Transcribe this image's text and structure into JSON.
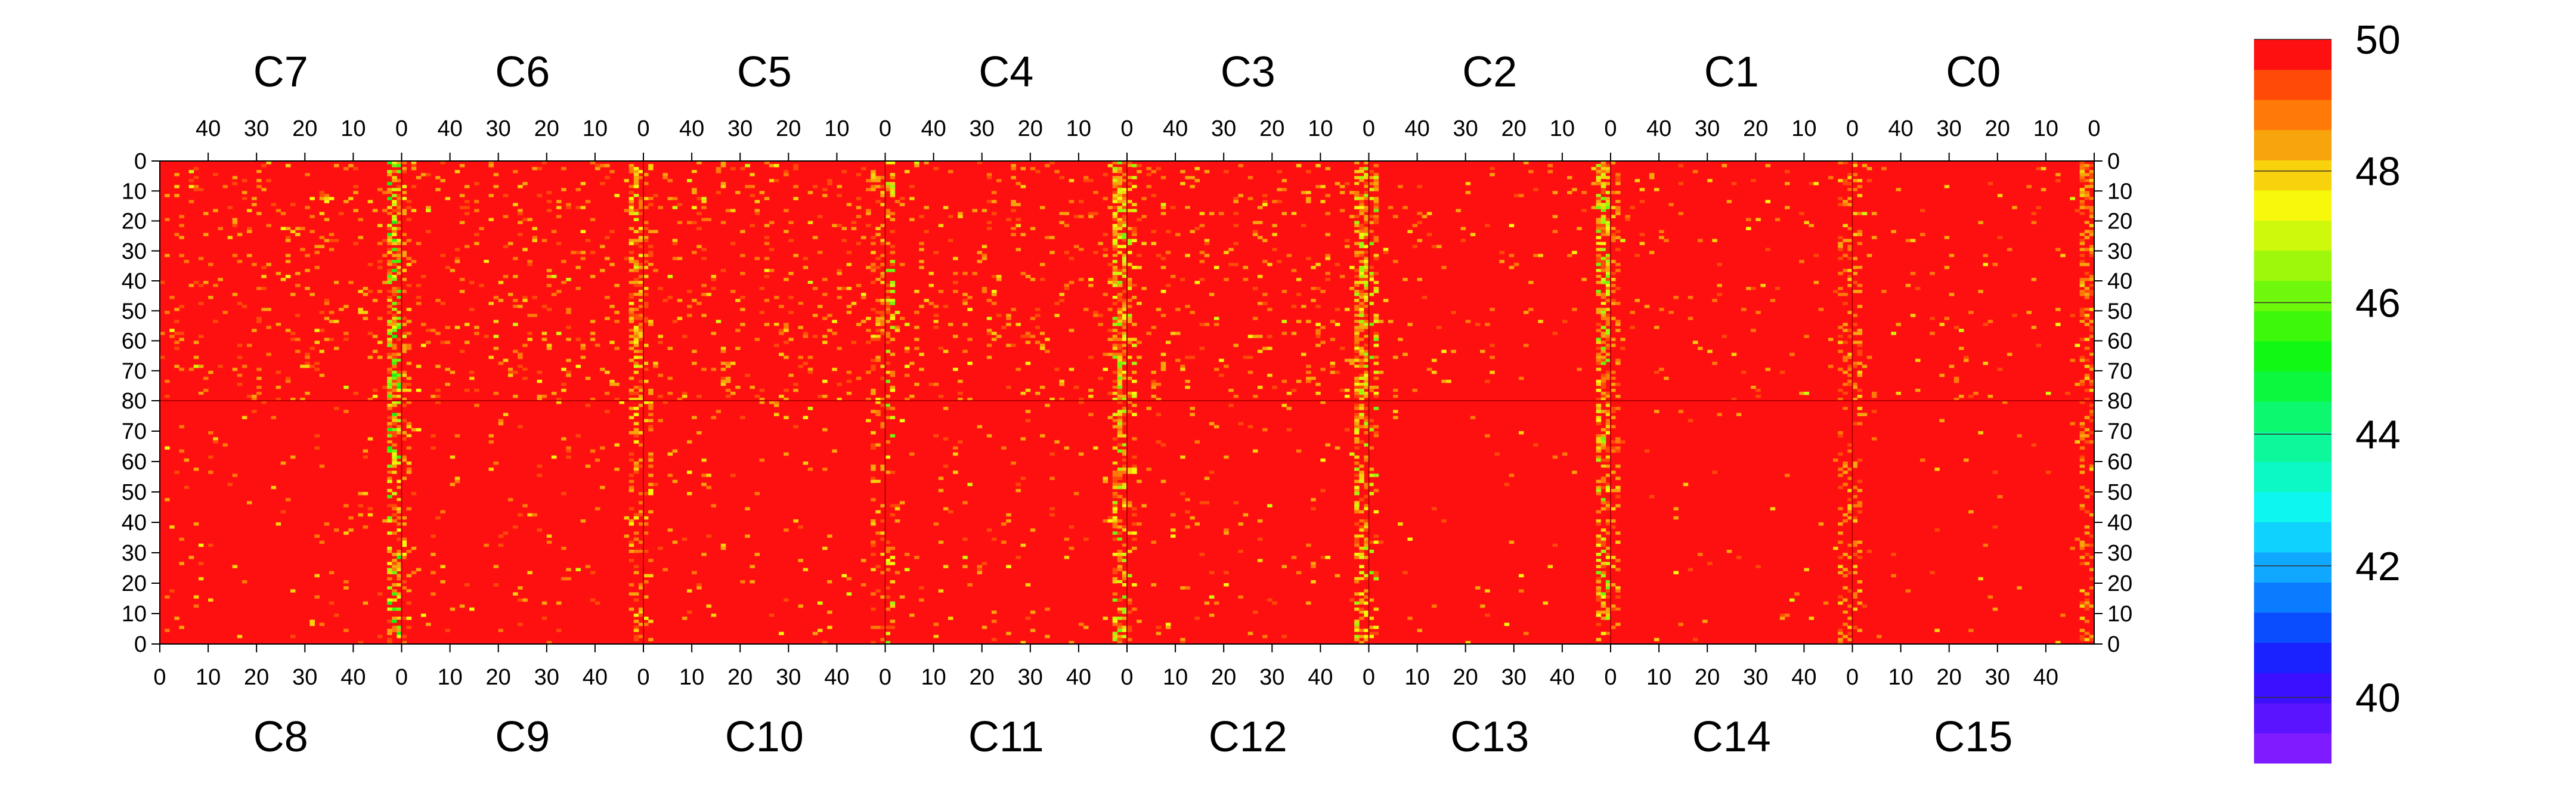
{
  "chart_data": {
    "type": "heatmap",
    "title": "",
    "top_panels": [
      "C7",
      "C6",
      "C5",
      "C4",
      "C3",
      "C2",
      "C1",
      "C0"
    ],
    "bottom_panels": [
      "C8",
      "C9",
      "C10",
      "C11",
      "C12",
      "C13",
      "C14",
      "C15"
    ],
    "top_x_ticks": [
      40,
      30,
      20,
      10,
      0
    ],
    "bottom_x_ticks": [
      0,
      10,
      20,
      30,
      40
    ],
    "upper_y_ticks": [
      0,
      10,
      20,
      30,
      40,
      50,
      60,
      70,
      80
    ],
    "lower_y_ticks": [
      70,
      60,
      50,
      40,
      30,
      20,
      10,
      0
    ],
    "columns_per_panel": 50,
    "rows_per_half": 80,
    "baseline_value": 50,
    "colorbar": {
      "min": 39,
      "max": 50,
      "ticks": [
        40,
        42,
        44,
        46,
        48,
        50
      ],
      "colors": [
        "#7f1bff",
        "#5a14ff",
        "#3a10ff",
        "#1a22ff",
        "#0a4dff",
        "#0a7cff",
        "#10a8ff",
        "#10d2ff",
        "#0ef6f0",
        "#0cf8c4",
        "#0cf89a",
        "#0cf86e",
        "#0cf83e",
        "#10f814",
        "#3ef80c",
        "#6ef80c",
        "#9ef80c",
        "#cef80c",
        "#f8f80c",
        "#f8d20c",
        "#f8a40c",
        "#ff7a08",
        "#ff4a08",
        "#ff1010"
      ]
    },
    "hot_columns": [
      {
        "panel": "C7",
        "x": 0,
        "level": "high",
        "min_value": 45
      },
      {
        "panel": "C6",
        "x": 0,
        "level": "medium",
        "min_value": 47
      },
      {
        "panel": "C5",
        "x": 0,
        "level": "low",
        "min_value": 47.5
      },
      {
        "panel": "C4",
        "x": 0,
        "level": "high",
        "min_value": 46
      },
      {
        "panel": "C3",
        "x": 0,
        "level": "high",
        "min_value": 46.5
      },
      {
        "panel": "C2",
        "x": 0,
        "level": "high",
        "min_value": 46
      },
      {
        "panel": "C1",
        "x": 0,
        "level": "low",
        "min_value": 48
      },
      {
        "panel": "C0",
        "x": 0,
        "level": "medium",
        "min_value": 48
      }
    ]
  }
}
